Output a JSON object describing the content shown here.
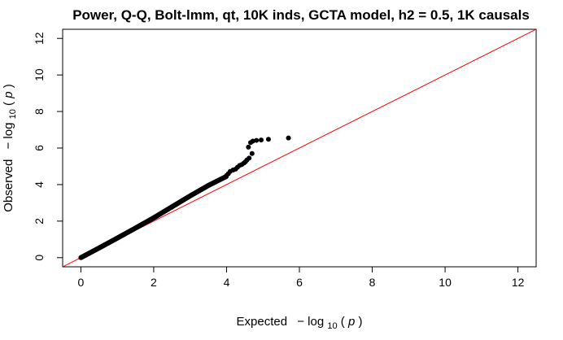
{
  "chart_data": {
    "type": "scatter",
    "title": "Power, Q-Q, Bolt-lmm, qt, 10K inds, GCTA model, h2 = 0.5, 1K causals",
    "xlabel": {
      "prefix": "Expected",
      "minus": "−",
      "log": "log",
      "sub": "10",
      "open": "(",
      "var": "p",
      "close": ")"
    },
    "ylabel": {
      "prefix": "Observed",
      "minus": "−",
      "log": "log",
      "sub": "10",
      "open": "(",
      "var": "p",
      "close": ")"
    },
    "xlim": [
      -0.5,
      12.5
    ],
    "ylim": [
      -0.5,
      12.5
    ],
    "x_ticks": [
      "0",
      "2",
      "4",
      "6",
      "8",
      "10",
      "12"
    ],
    "y_ticks": [
      "0",
      "2",
      "4",
      "6",
      "8",
      "10",
      "12"
    ],
    "reference_line": {
      "slope": 1,
      "intercept": 0,
      "color": "#ff0000"
    },
    "point_color": "#000000",
    "grid": false,
    "series": [
      {
        "curve": [
          [
            0,
            0.0
          ],
          [
            0.5,
            0.53
          ],
          [
            1,
            1.07
          ],
          [
            1.5,
            1.62
          ],
          [
            2,
            2.18
          ],
          [
            2.5,
            2.78
          ],
          [
            3,
            3.38
          ],
          [
            3.5,
            3.95
          ],
          [
            4,
            4.45
          ]
        ],
        "tail": [
          [
            4.0,
            4.5
          ],
          [
            4.05,
            4.6
          ],
          [
            4.1,
            4.72
          ],
          [
            4.18,
            4.8
          ],
          [
            4.25,
            4.85
          ],
          [
            4.3,
            4.95
          ],
          [
            4.36,
            5.05
          ],
          [
            4.42,
            5.1
          ],
          [
            4.48,
            5.18
          ],
          [
            4.52,
            5.25
          ],
          [
            4.56,
            5.35
          ],
          [
            4.62,
            5.45
          ],
          [
            4.7,
            5.7
          ],
          [
            4.6,
            6.05
          ],
          [
            4.66,
            6.3
          ],
          [
            4.72,
            6.38
          ],
          [
            4.82,
            6.42
          ],
          [
            4.95,
            6.44
          ],
          [
            5.15,
            6.48
          ],
          [
            5.7,
            6.55
          ]
        ]
      }
    ]
  }
}
